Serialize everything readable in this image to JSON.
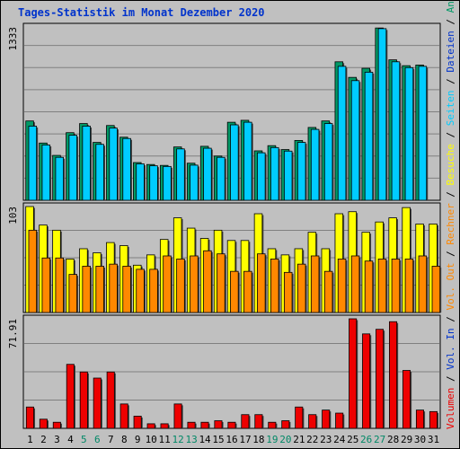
{
  "chart_data": {
    "type": "bar",
    "title": "Tages-Statistik im Monat Dezember 2020",
    "categories": [
      "1",
      "2",
      "3",
      "4",
      "5",
      "6",
      "7",
      "8",
      "9",
      "10",
      "11",
      "12",
      "13",
      "14",
      "15",
      "16",
      "17",
      "18",
      "19",
      "20",
      "21",
      "22",
      "23",
      "24",
      "25",
      "26",
      "27",
      "28",
      "29",
      "30",
      "31"
    ],
    "weekend_days": [
      "5",
      "6",
      "12",
      "13",
      "19",
      "20",
      "26",
      "27"
    ],
    "panels": [
      {
        "name": "top",
        "ymax_label": "1333",
        "ymax": 1333,
        "series": [
          {
            "name": "Anfragen",
            "color": "#009966",
            "values": [
              610,
              440,
              345,
              520,
              590,
              445,
              575,
              485,
              290,
              275,
              268,
              410,
              285,
              415,
              340,
              600,
              615,
              380,
              420,
              390,
              460,
              560,
              610,
              1065,
              945,
              1015,
              1325,
              1080,
              1035,
              1040,
              0
            ]
          },
          {
            "name": "Seiten",
            "color": "#00ccff",
            "values": [
              570,
              425,
              330,
              500,
              570,
              430,
              555,
              475,
              280,
              265,
              260,
              395,
              270,
              400,
              330,
              580,
              600,
              365,
              405,
              378,
              445,
              545,
              590,
              1030,
              920,
              985,
              1320,
              1065,
              1020,
              1030,
              0
            ]
          },
          {
            "name": "Dateien",
            "color": "#0033cc",
            "values": []
          }
        ]
      },
      {
        "name": "middle",
        "ymax_label": "103",
        "ymax": 103,
        "series": [
          {
            "name": "Besuche",
            "color": "#ffff00",
            "values": [
              103,
              85,
              80,
              52,
              62,
              58,
              68,
              65,
              46,
              56,
              71,
              92,
              82,
              72,
              80,
              70,
              70,
              96,
              62,
              56,
              62,
              78,
              62,
              96,
              98,
              78,
              88,
              92,
              102,
              86,
              86
            ]
          },
          {
            "name": "Rechner",
            "color": "#ff8800",
            "values": [
              80,
              53,
              53,
              37,
              45,
              45,
              47,
              45,
              42,
              42,
              55,
              52,
              55,
              60,
              57,
              40,
              40,
              57,
              52,
              39,
              47,
              55,
              40,
              52,
              55,
              50,
              52,
              52,
              52,
              55,
              45
            ]
          }
        ]
      },
      {
        "name": "bottom",
        "ymax_label": "71.91",
        "ymax": 71.91,
        "series": [
          {
            "name": "Vol. Out",
            "color": "#ff8800",
            "values": []
          },
          {
            "name": "Vol. In",
            "color": "#0033cc",
            "values": []
          },
          {
            "name": "Volumen",
            "color": "#ee0000",
            "values": [
              14,
              6,
              4,
              42,
              37,
              33,
              37,
              16,
              8,
              3,
              3,
              16,
              4,
              4,
              5,
              4,
              9,
              9,
              4,
              5,
              14,
              9,
              12,
              10,
              71.91,
              62,
              65,
              70,
              38,
              12,
              11
            ]
          }
        ]
      }
    ],
    "legend_right": [
      {
        "label": "Volumen",
        "color": "#ee0000"
      },
      {
        "label": "Vol. In",
        "color": "#0033cc"
      },
      {
        "label": "Vol. Out",
        "color": "#ff8800"
      },
      {
        "label": "Rechner",
        "color": "#ff8800"
      },
      {
        "label": "Besuche",
        "color": "#ffff00"
      },
      {
        "label": "Seiten",
        "color": "#00ccff"
      },
      {
        "label": "Dateien",
        "color": "#0033cc"
      },
      {
        "label": "Anfragen",
        "color": "#009966"
      }
    ],
    "separator": " / ",
    "grid": true,
    "legend_placement": "right (vertical)"
  }
}
